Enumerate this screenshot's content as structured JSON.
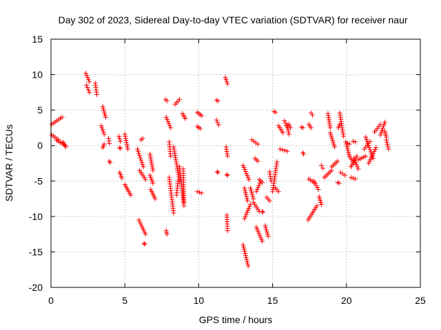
{
  "chart_data": {
    "type": "scatter",
    "title": "Day 302 of 2023, Sidereal Day-to-day VTEC variation (SDTVAR) for receiver naur",
    "xlabel": "GPS time / hours",
    "ylabel": "SDTVAR / TECUs",
    "xlim": [
      0,
      25
    ],
    "ylim": [
      -20,
      15
    ],
    "x_ticks": [
      "0",
      "5",
      "10",
      "15",
      "20",
      "25"
    ],
    "y_ticks": [
      "-20",
      "-15",
      "-10",
      "-5",
      "0",
      "5",
      "10",
      "15"
    ],
    "grid": true,
    "marker": "+",
    "colors": {
      "points": "#ff0000",
      "grid": "#a0a0a0",
      "axes": "#000000"
    },
    "segments": [
      [
        0.05,
        3.0,
        0.75,
        4.0
      ],
      [
        0.05,
        1.5,
        0.5,
        0.8
      ],
      [
        0.4,
        0.7,
        1.0,
        0.0
      ],
      [
        0.8,
        0.5,
        1.0,
        -0.2
      ],
      [
        2.35,
        10.2,
        2.6,
        9.0
      ],
      [
        2.4,
        8.5,
        2.6,
        7.5
      ],
      [
        3.0,
        8.8,
        3.1,
        7.2
      ],
      [
        3.5,
        5.5,
        3.7,
        4.0
      ],
      [
        3.4,
        2.8,
        3.6,
        1.6
      ],
      [
        3.6,
        0.2,
        3.5,
        -0.3
      ],
      [
        3.9,
        1.0,
        3.95,
        0.3
      ],
      [
        3.95,
        -2.2,
        4.0,
        -2.4
      ],
      [
        4.6,
        1.3,
        4.7,
        0.6
      ],
      [
        4.65,
        -0.3,
        4.7,
        -0.4
      ],
      [
        4.65,
        -3.8,
        4.8,
        -4.6
      ],
      [
        5.0,
        1.6,
        5.2,
        -0.5
      ],
      [
        5.0,
        -5.5,
        5.4,
        -7.0
      ],
      [
        5.85,
        -0.5,
        6.25,
        -3.0
      ],
      [
        5.95,
        -10.5,
        6.4,
        -12.5
      ],
      [
        6.0,
        -3.5,
        6.4,
        -4.8
      ],
      [
        6.1,
        0.8,
        6.2,
        1.0
      ],
      [
        6.3,
        -13.8,
        6.35,
        -13.9
      ],
      [
        6.7,
        -1.2,
        6.9,
        -3.5
      ],
      [
        6.7,
        -4.2,
        6.9,
        -5.3
      ],
      [
        6.75,
        -6.2,
        7.05,
        -7.5
      ],
      [
        7.75,
        6.5,
        7.85,
        6.3
      ],
      [
        7.8,
        4.0,
        8.1,
        2.5
      ],
      [
        7.8,
        -12.0,
        7.85,
        -12.5
      ],
      [
        8.0,
        -4.5,
        8.3,
        -9.5
      ],
      [
        8.4,
        5.8,
        8.7,
        6.5
      ],
      [
        8.0,
        0.5,
        8.1,
        -1.5
      ],
      [
        8.3,
        -0.2,
        8.7,
        -5.0
      ],
      [
        8.7,
        -3.0,
        9.0,
        -8.5
      ],
      [
        9.0,
        -8.0,
        8.95,
        -3.3
      ],
      [
        8.6,
        -5.0,
        8.5,
        -7.0
      ],
      [
        8.9,
        4.5,
        9.1,
        3.8
      ],
      [
        9.9,
        4.7,
        10.2,
        4.2
      ],
      [
        9.9,
        2.7,
        10.1,
        2.4
      ],
      [
        9.9,
        -6.5,
        10.2,
        -6.7
      ],
      [
        11.2,
        6.4,
        11.3,
        6.3
      ],
      [
        11.2,
        3.6,
        11.35,
        2.9
      ],
      [
        11.25,
        -3.7,
        11.3,
        -3.8
      ],
      [
        11.8,
        9.6,
        11.95,
        8.7
      ],
      [
        11.85,
        -0.2,
        11.95,
        -1.5
      ],
      [
        11.9,
        -4.1,
        11.95,
        -4.2
      ],
      [
        11.9,
        -9.8,
        11.95,
        -12.0
      ],
      [
        13.0,
        -14.0,
        13.35,
        -17.0
      ],
      [
        13.0,
        -2.8,
        13.4,
        -4.8
      ],
      [
        13.1,
        -6.0,
        13.3,
        -7.8
      ],
      [
        13.1,
        -10.3,
        13.5,
        -8.3
      ],
      [
        13.5,
        -6.0,
        13.7,
        -7.5
      ],
      [
        13.6,
        0.8,
        14.0,
        0.2
      ],
      [
        13.7,
        -8.0,
        14.1,
        -9.3
      ],
      [
        13.8,
        -1.8,
        14.0,
        -2.2
      ],
      [
        13.9,
        -11.5,
        14.3,
        -13.5
      ],
      [
        13.9,
        -6.5,
        14.2,
        -5.0
      ],
      [
        14.1,
        -4.8,
        14.3,
        -5.2
      ],
      [
        14.3,
        -9.3,
        14.35,
        -9.4
      ],
      [
        14.5,
        -11.3,
        14.7,
        -12.8
      ],
      [
        14.6,
        -7.3,
        14.8,
        -7.8
      ],
      [
        14.8,
        -3.7,
        14.9,
        -5.0
      ],
      [
        15.0,
        -6.5,
        15.3,
        -2.3
      ],
      [
        15.1,
        4.8,
        15.2,
        4.7
      ],
      [
        15.2,
        -6.0,
        15.4,
        -6.5
      ],
      [
        15.4,
        2.8,
        15.7,
        1.8
      ],
      [
        15.5,
        -0.5,
        16.0,
        -0.8
      ],
      [
        15.8,
        3.5,
        16.0,
        2.5
      ],
      [
        16.0,
        2.8,
        16.1,
        1.6
      ],
      [
        16.1,
        3.0,
        16.2,
        2.5
      ],
      [
        16.95,
        2.6,
        17.05,
        2.5
      ],
      [
        17.05,
        -1.0,
        17.1,
        -1.2
      ],
      [
        17.45,
        3.0,
        17.6,
        2.5
      ],
      [
        17.6,
        4.6,
        17.7,
        4.3
      ],
      [
        17.45,
        -4.7,
        17.8,
        -5.2
      ],
      [
        17.8,
        -5.0,
        18.1,
        -6.2
      ],
      [
        17.4,
        -10.5,
        18.0,
        -8.5
      ],
      [
        18.15,
        -7.2,
        18.3,
        -8.3
      ],
      [
        18.3,
        -2.8,
        18.4,
        -3.2
      ],
      [
        18.5,
        -4.5,
        19.0,
        -3.5
      ],
      [
        18.75,
        4.5,
        18.9,
        2.5
      ],
      [
        18.9,
        1.8,
        19.2,
        -0.2
      ],
      [
        19.0,
        -3.0,
        19.4,
        -2.2
      ],
      [
        19.4,
        -5.2,
        19.5,
        -5.3
      ],
      [
        19.45,
        2.5,
        19.55,
        3.0
      ],
      [
        19.55,
        4.6,
        19.8,
        1.3
      ],
      [
        19.6,
        -3.8,
        19.9,
        -4.2
      ],
      [
        19.95,
        0.5,
        20.2,
        0.2
      ],
      [
        20.0,
        0.2,
        20.2,
        -1.5
      ],
      [
        20.2,
        -1.5,
        20.5,
        -2.5
      ],
      [
        20.3,
        -3.0,
        20.7,
        -1.5
      ],
      [
        20.3,
        -4.5,
        20.6,
        -4.7
      ],
      [
        20.45,
        0.6,
        20.6,
        0.5
      ],
      [
        20.5,
        -1.8,
        20.8,
        -3.3
      ],
      [
        20.8,
        -2.0,
        21.3,
        -1.5
      ],
      [
        21.3,
        1.2,
        21.8,
        -1.8
      ],
      [
        21.2,
        -0.5,
        21.6,
        0.6
      ],
      [
        21.5,
        -2.5,
        22.0,
        -0.3
      ],
      [
        21.9,
        1.9,
        22.3,
        3.0
      ],
      [
        22.3,
        1.5,
        22.6,
        3.3
      ],
      [
        22.6,
        2.0,
        22.7,
        1.2
      ],
      [
        22.7,
        0.8,
        22.85,
        -0.5
      ]
    ]
  }
}
